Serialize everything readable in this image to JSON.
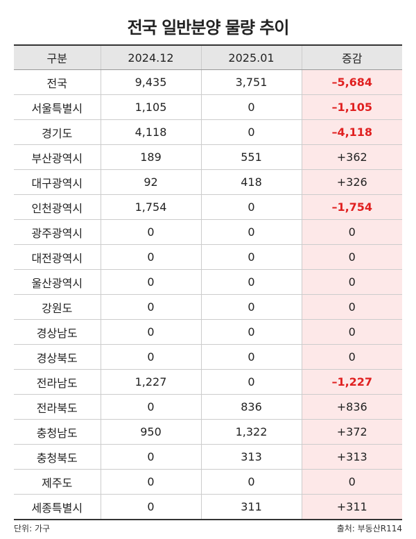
{
  "title": "전국 일반분양 물량 추이",
  "table": {
    "header": [
      "구분",
      "2024.12",
      "2025.01",
      "증감"
    ],
    "rows": [
      [
        "전국",
        "9,435",
        "3,751",
        "–5,684"
      ],
      [
        "서울특별시",
        "1,105",
        "0",
        "–1,105"
      ],
      [
        "경기도",
        "4,118",
        "0",
        "–4,118"
      ],
      [
        "부산광역시",
        "189",
        "551",
        "+362"
      ],
      [
        "대구광역시",
        "92",
        "418",
        "+326"
      ],
      [
        "인천광역시",
        "1,754",
        "0",
        "–1,754"
      ],
      [
        "광주광역시",
        "0",
        "0",
        "0"
      ],
      [
        "대전광역시",
        "0",
        "0",
        "0"
      ],
      [
        "울산광역시",
        "0",
        "0",
        "0"
      ],
      [
        "강원도",
        "0",
        "0",
        "0"
      ],
      [
        "경상남도",
        "0",
        "0",
        "0"
      ],
      [
        "경상북도",
        "0",
        "0",
        "0"
      ],
      [
        "전라남도",
        "1,227",
        "0",
        "–1,227"
      ],
      [
        "전라북도",
        "0",
        "836",
        "+836"
      ],
      [
        "충청남도",
        "950",
        "1,322",
        "+372"
      ],
      [
        "충청북도",
        "0",
        "313",
        "+313"
      ],
      [
        "제주도",
        "0",
        "0",
        "0"
      ],
      [
        "세종특별시",
        "0",
        "311",
        "+311"
      ]
    ]
  },
  "footer": {
    "unit": "단위: 가구",
    "source": "출처: 부동산R114"
  }
}
